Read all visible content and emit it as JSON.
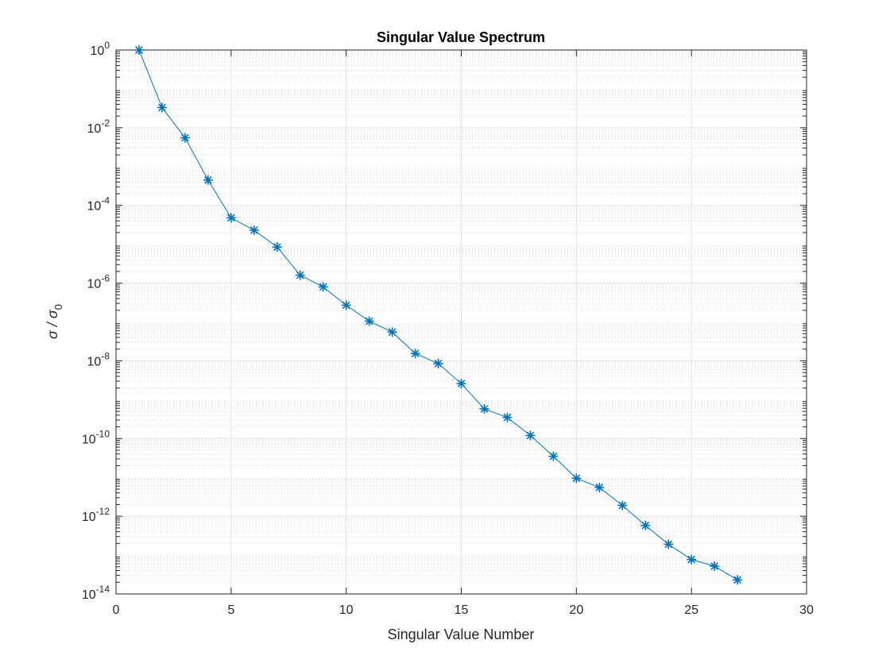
{
  "chart_data": {
    "type": "line",
    "title": "Singular Value Spectrum",
    "xlabel": "Singular Value Number",
    "ylabel": {
      "main": "σ / σ",
      "subscript": "0"
    },
    "xscale": "linear",
    "yscale": "log",
    "xlim": [
      0,
      30
    ],
    "ylim": [
      1e-14,
      1
    ],
    "xticks": [
      0,
      5,
      10,
      15,
      20,
      25,
      30
    ],
    "yticks": [
      {
        "value": 1,
        "base": "10",
        "exp": "0"
      },
      {
        "value": 0.01,
        "base": "10",
        "exp": "-2"
      },
      {
        "value": 0.0001,
        "base": "10",
        "exp": "-4"
      },
      {
        "value": 1e-06,
        "base": "10",
        "exp": "-6"
      },
      {
        "value": 1e-08,
        "base": "10",
        "exp": "-8"
      },
      {
        "value": 1e-10,
        "base": "10",
        "exp": "-10"
      },
      {
        "value": 1e-12,
        "base": "10",
        "exp": "-12"
      },
      {
        "value": 1e-14,
        "base": "10",
        "exp": "-14"
      }
    ],
    "grid": true,
    "minor_grid": true,
    "marker": "asterisk",
    "series": [
      {
        "color": "#0072BD",
        "x": [
          1,
          2,
          3,
          4,
          5,
          6,
          7,
          8,
          9,
          10,
          11,
          12,
          13,
          14,
          15,
          16,
          17,
          18,
          19,
          20,
          21,
          22,
          23,
          24,
          25,
          26,
          27
        ],
        "y": [
          1,
          0.033,
          0.0055,
          0.00045,
          4.8e-05,
          2.3e-05,
          8.5e-06,
          1.6e-06,
          8e-07,
          2.7e-07,
          1.05e-07,
          5.5e-08,
          1.55e-08,
          8.5e-09,
          2.6e-09,
          5.8e-10,
          3.5e-10,
          1.2e-10,
          3.5e-11,
          9.5e-12,
          5.5e-12,
          1.9e-12,
          5.8e-13,
          1.9e-13,
          7.7e-14,
          5.2e-14,
          2.3e-14
        ]
      }
    ]
  }
}
